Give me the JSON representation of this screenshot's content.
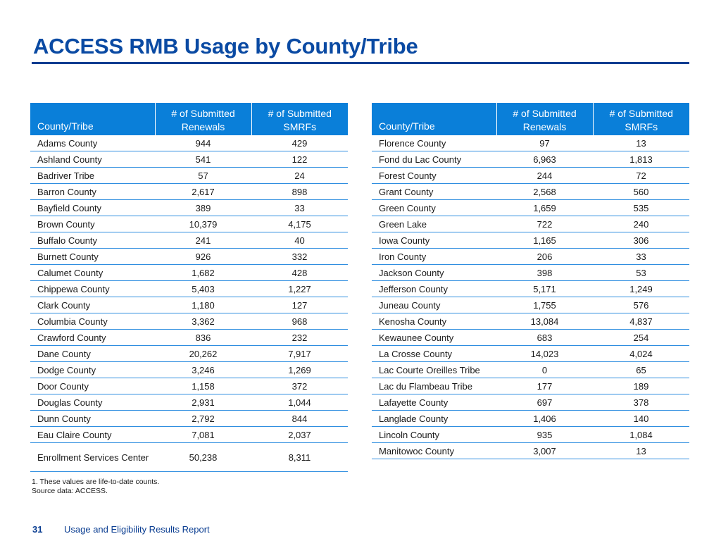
{
  "title": "ACCESS RMB Usage by County/Tribe",
  "headers": {
    "name": "County/Tribe",
    "renewals_line1": "# of Submitted",
    "renewals_line2": "Renewals",
    "smrfs_line1": "# of Submitted",
    "smrfs_line2": "SMRFs"
  },
  "left_rows": [
    {
      "name": "Adams County",
      "renewals": "944",
      "smrfs": "429"
    },
    {
      "name": "Ashland County",
      "renewals": "541",
      "smrfs": "122"
    },
    {
      "name": "Badriver Tribe",
      "renewals": "57",
      "smrfs": "24"
    },
    {
      "name": "Barron County",
      "renewals": "2,617",
      "smrfs": "898"
    },
    {
      "name": "Bayfield County",
      "renewals": "389",
      "smrfs": "33"
    },
    {
      "name": "Brown County",
      "renewals": "10,379",
      "smrfs": "4,175"
    },
    {
      "name": "Buffalo County",
      "renewals": "241",
      "smrfs": "40"
    },
    {
      "name": "Burnett County",
      "renewals": "926",
      "smrfs": "332"
    },
    {
      "name": "Calumet County",
      "renewals": "1,682",
      "smrfs": "428"
    },
    {
      "name": "Chippewa County",
      "renewals": "5,403",
      "smrfs": "1,227"
    },
    {
      "name": "Clark County",
      "renewals": "1,180",
      "smrfs": "127"
    },
    {
      "name": "Columbia County",
      "renewals": "3,362",
      "smrfs": "968"
    },
    {
      "name": "Crawford County",
      "renewals": "836",
      "smrfs": "232"
    },
    {
      "name": "Dane County",
      "renewals": "20,262",
      "smrfs": "7,917"
    },
    {
      "name": "Dodge County",
      "renewals": "3,246",
      "smrfs": "1,269"
    },
    {
      "name": "Door County",
      "renewals": "1,158",
      "smrfs": "372"
    },
    {
      "name": "Douglas County",
      "renewals": "2,931",
      "smrfs": "1,044"
    },
    {
      "name": "Dunn County",
      "renewals": "2,792",
      "smrfs": "844"
    },
    {
      "name": "Eau Claire County",
      "renewals": "7,081",
      "smrfs": "2,037"
    },
    {
      "name": "Enrollment Services Center",
      "renewals": "50,238",
      "smrfs": "8,311"
    }
  ],
  "right_rows": [
    {
      "name": "Florence County",
      "renewals": "97",
      "smrfs": "13"
    },
    {
      "name": "Fond du Lac County",
      "renewals": "6,963",
      "smrfs": "1,813"
    },
    {
      "name": "Forest County",
      "renewals": "244",
      "smrfs": "72"
    },
    {
      "name": "Grant County",
      "renewals": "2,568",
      "smrfs": "560"
    },
    {
      "name": "Green County",
      "renewals": "1,659",
      "smrfs": "535"
    },
    {
      "name": "Green Lake",
      "renewals": "722",
      "smrfs": "240"
    },
    {
      "name": "Iowa County",
      "renewals": "1,165",
      "smrfs": "306"
    },
    {
      "name": "Iron County",
      "renewals": "206",
      "smrfs": "33"
    },
    {
      "name": "Jackson County",
      "renewals": "398",
      "smrfs": "53"
    },
    {
      "name": "Jefferson County",
      "renewals": "5,171",
      "smrfs": "1,249"
    },
    {
      "name": "Juneau County",
      "renewals": "1,755",
      "smrfs": "576"
    },
    {
      "name": "Kenosha County",
      "renewals": "13,084",
      "smrfs": "4,837"
    },
    {
      "name": "Kewaunee County",
      "renewals": "683",
      "smrfs": "254"
    },
    {
      "name": "La Crosse County",
      "renewals": "14,023",
      "smrfs": "4,024"
    },
    {
      "name": "Lac Courte Oreilles Tribe",
      "renewals": "0",
      "smrfs": "65"
    },
    {
      "name": "Lac du Flambeau Tribe",
      "renewals": "177",
      "smrfs": "189"
    },
    {
      "name": "Lafayette County",
      "renewals": "697",
      "smrfs": "378"
    },
    {
      "name": "Langlade County",
      "renewals": "1,406",
      "smrfs": "140"
    },
    {
      "name": "Lincoln County",
      "renewals": "935",
      "smrfs": "1,084"
    },
    {
      "name": "Manitowoc County",
      "renewals": "3,007",
      "smrfs": "13"
    }
  ],
  "footnotes": {
    "note1": "1. These values are life-to-date counts.",
    "note2": "Source data: ACCESS."
  },
  "footer": {
    "page_number": "31",
    "report_name": "Usage and Eligibility Results Report"
  },
  "colors": {
    "title": "#0a4aa3",
    "header_bg": "#0a7fd9",
    "row_rule": "#2f8ee0"
  }
}
